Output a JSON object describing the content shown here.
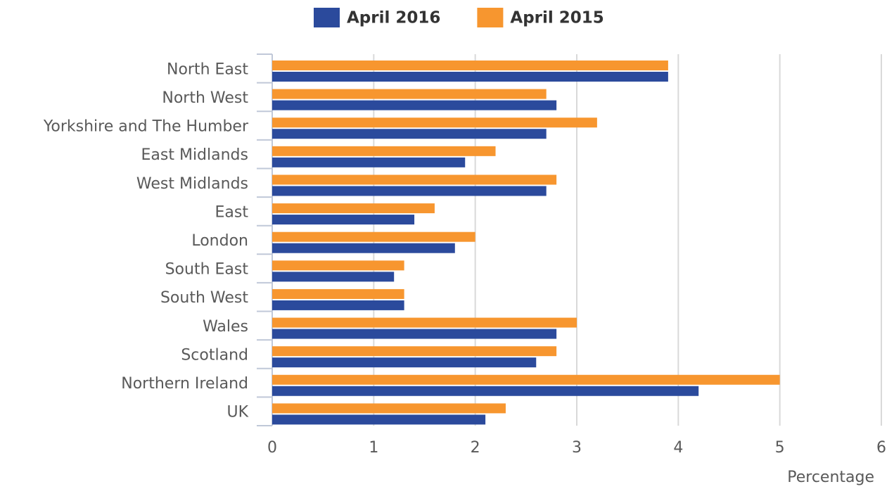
{
  "chart_data": {
    "type": "hbar",
    "categories": [
      "North East",
      "North West",
      "Yorkshire and The Humber",
      "East Midlands",
      "West Midlands",
      "East",
      "London",
      "South East",
      "South West",
      "Wales",
      "Scotland",
      "Northern Ireland",
      "UK"
    ],
    "series": [
      {
        "name": "April 2016",
        "color": "#2b4a9c",
        "values": [
          3.9,
          2.8,
          2.7,
          1.9,
          2.7,
          1.4,
          1.8,
          1.2,
          1.3,
          2.8,
          2.6,
          4.2,
          2.1
        ]
      },
      {
        "name": "April 2015",
        "color": "#f7962f",
        "values": [
          3.9,
          2.7,
          3.2,
          2.2,
          2.8,
          1.6,
          2.0,
          1.3,
          1.3,
          3.0,
          2.8,
          5.0,
          2.3
        ]
      }
    ],
    "xlabel": "Percentage",
    "xlim": [
      0,
      6
    ],
    "xticks": [
      0,
      1,
      2,
      3,
      4,
      5,
      6
    ],
    "grid": true,
    "legend": "top"
  }
}
